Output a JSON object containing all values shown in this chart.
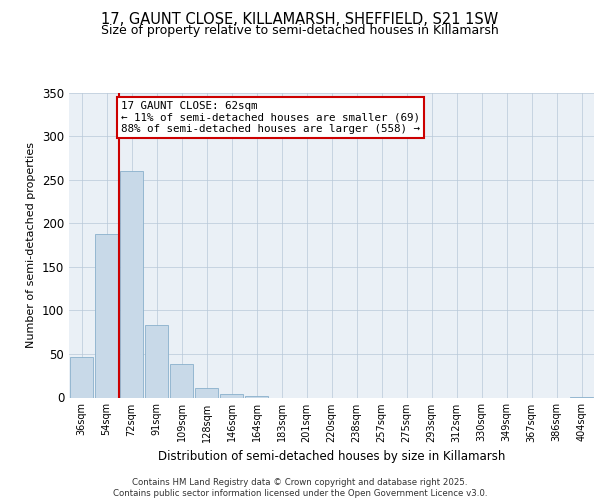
{
  "title": "17, GAUNT CLOSE, KILLAMARSH, SHEFFIELD, S21 1SW",
  "subtitle": "Size of property relative to semi-detached houses in Killamarsh",
  "xlabel": "Distribution of semi-detached houses by size in Killamarsh",
  "ylabel": "Number of semi-detached properties",
  "bar_labels": [
    "36sqm",
    "54sqm",
    "72sqm",
    "91sqm",
    "109sqm",
    "128sqm",
    "146sqm",
    "164sqm",
    "183sqm",
    "201sqm",
    "220sqm",
    "238sqm",
    "257sqm",
    "275sqm",
    "293sqm",
    "312sqm",
    "330sqm",
    "349sqm",
    "367sqm",
    "386sqm",
    "404sqm"
  ],
  "bar_values": [
    47,
    188,
    260,
    83,
    38,
    11,
    4,
    2,
    0,
    0,
    0,
    0,
    0,
    0,
    0,
    0,
    0,
    0,
    0,
    0,
    1
  ],
  "bar_color": "#c8d9e8",
  "bar_edge_color": "#8ab0cc",
  "annotation_title": "17 GAUNT CLOSE: 62sqm",
  "annotation_line1": "← 11% of semi-detached houses are smaller (69)",
  "annotation_line2": "88% of semi-detached houses are larger (558) →",
  "line_color": "#cc0000",
  "annotation_box_color": "#ffffff",
  "annotation_box_edge": "#cc0000",
  "ylim": [
    0,
    350
  ],
  "yticks": [
    0,
    50,
    100,
    150,
    200,
    250,
    300,
    350
  ],
  "background_color": "#eaf0f6",
  "footer_line1": "Contains HM Land Registry data © Crown copyright and database right 2025.",
  "footer_line2": "Contains public sector information licensed under the Open Government Licence v3.0.",
  "title_fontsize": 10.5,
  "subtitle_fontsize": 9
}
